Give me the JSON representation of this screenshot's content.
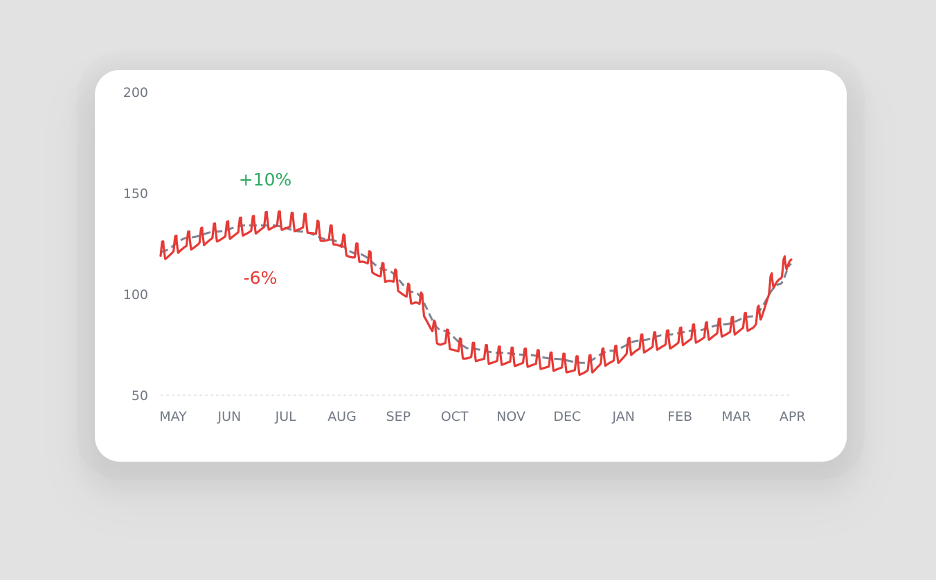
{
  "colors": {
    "background": "#e3e2e3",
    "card": "#ffffff",
    "axis_text": "#727985",
    "gridline": "#d6d9de",
    "actual_line": "#e63a36",
    "trend_line": "#7c8593",
    "positive": "#2eaa63",
    "negative": "#e63a36"
  },
  "annotations": {
    "positive": "+10%",
    "negative": "-6%"
  },
  "chart_data": {
    "type": "line",
    "title": "",
    "xlabel": "",
    "ylabel": "",
    "ylim": [
      50,
      200
    ],
    "yticks": [
      50,
      100,
      150,
      200
    ],
    "x_tick_labels": [
      "MAY",
      "JUN",
      "JUL",
      "AUG",
      "SEP",
      "OCT",
      "NOV",
      "DEC",
      "JAN",
      "FEB",
      "MAR",
      "APR"
    ],
    "grid": "baseline dashed at 50",
    "legend": "none",
    "weekly_spike_height": 7,
    "series": [
      {
        "style": "dashed",
        "color": "#7c8593",
        "x": [
          0,
          0.5,
          1,
          1.5,
          2,
          2.5,
          3,
          3.5,
          4,
          4.5,
          5,
          5.5,
          6,
          6.5,
          7,
          7.5,
          8,
          8.5,
          9,
          9.5,
          10,
          10.5,
          11,
          11.2
        ],
        "values": [
          121,
          128,
          131,
          134,
          134,
          131,
          127,
          120,
          112,
          101,
          82,
          73,
          71,
          70,
          68,
          66,
          72,
          77,
          80,
          82,
          85,
          89,
          105,
          115
        ]
      },
      {
        "style": "solid",
        "color": "#e63a36",
        "note": "daily values with weekly spikes",
        "x": [
          0,
          0.5,
          1,
          1.5,
          2,
          2.5,
          3,
          3.5,
          4,
          4.5,
          5,
          5.5,
          6,
          6.5,
          7,
          7.5,
          8,
          8.5,
          9,
          9.5,
          10,
          10.5,
          11,
          11.2
        ],
        "values": [
          119,
          124,
          128,
          131,
          134,
          133,
          127,
          118,
          108,
          97,
          76,
          69,
          67,
          66,
          64,
          62,
          67,
          73,
          75,
          78,
          81,
          84,
          108,
          118
        ]
      }
    ]
  }
}
